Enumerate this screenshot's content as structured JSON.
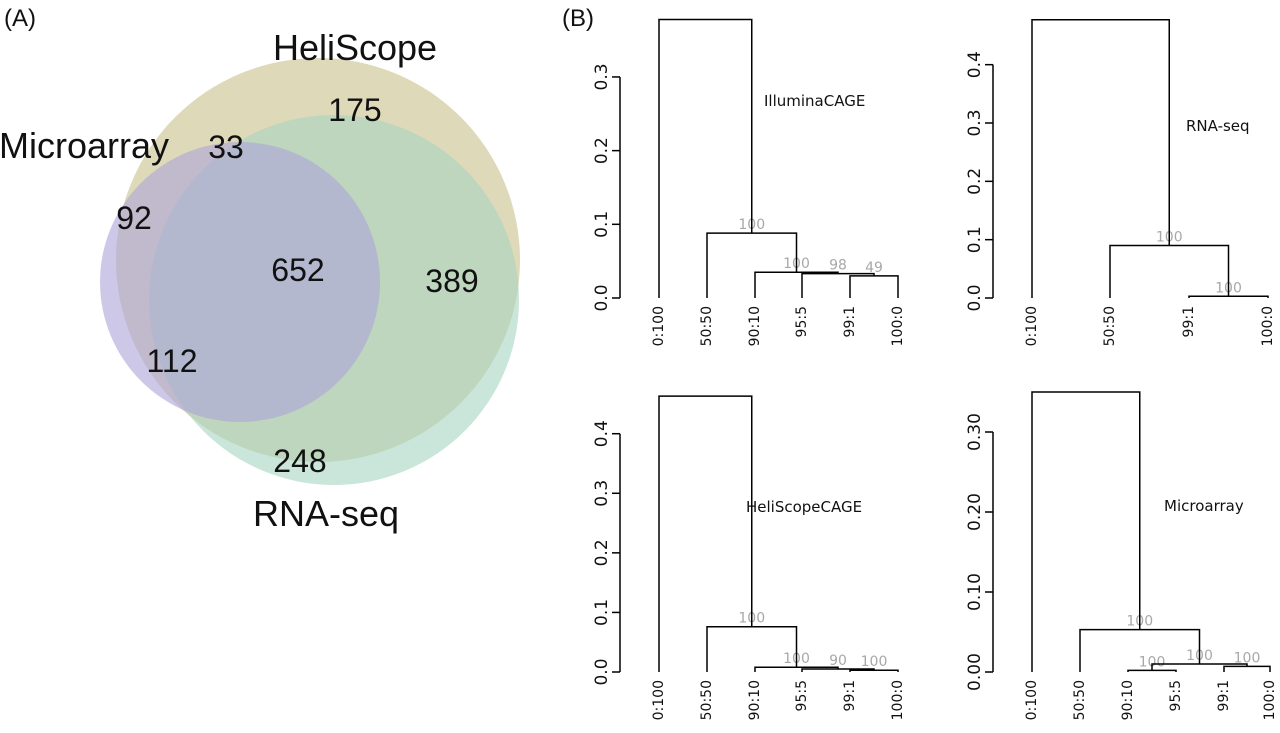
{
  "panels": {
    "a": "(A)",
    "b": "(B)"
  },
  "venn": {
    "sets": [
      {
        "name": "HeliScope",
        "color": "#c8c08a"
      },
      {
        "name": "Microarray",
        "color": "#aea4d8"
      },
      {
        "name": "RNA-seq",
        "color": "#a6d4c0"
      }
    ],
    "counts": {
      "heliscope_only": "175",
      "microarray_heliscope": "33",
      "microarray_only": "92",
      "all_three": "652",
      "heliscope_rnaseq": "389",
      "microarray_rnaseq": "112",
      "rnaseq_only": "248"
    }
  },
  "chart_data": [
    {
      "type": "dendrogram",
      "title": "IlluminaCAGE",
      "ylim": [
        0,
        0.38
      ],
      "yticks": [
        "0.0",
        "0.1",
        "0.2",
        "0.3"
      ],
      "leaves": [
        "0:100",
        "50:50",
        "90:10",
        "95:5",
        "99:1",
        "100:0"
      ],
      "merges": [
        {
          "left": 4,
          "right": 5,
          "height": 0.03,
          "bootstrap": "49"
        },
        {
          "left": 3,
          "right": -1,
          "height": 0.033,
          "bootstrap": "98"
        },
        {
          "left": 2,
          "right": -2,
          "height": 0.035,
          "bootstrap": "100"
        },
        {
          "left": 1,
          "right": -3,
          "height": 0.088,
          "bootstrap": "100"
        },
        {
          "left": 0,
          "right": -4,
          "height": 0.378,
          "bootstrap": ""
        }
      ]
    },
    {
      "type": "dendrogram",
      "title": "RNA-seq",
      "ylim": [
        0,
        0.48
      ],
      "yticks": [
        "0.0",
        "0.1",
        "0.2",
        "0.3",
        "0.4"
      ],
      "leaves": [
        "0:100",
        "50:50",
        "99:1",
        "100:0"
      ],
      "merges": [
        {
          "left": 2,
          "right": 3,
          "height": 0.003,
          "bootstrap": "100"
        },
        {
          "left": 1,
          "right": -1,
          "height": 0.09,
          "bootstrap": "100"
        },
        {
          "left": 0,
          "right": -2,
          "height": 0.477,
          "bootstrap": ""
        }
      ]
    },
    {
      "type": "dendrogram",
      "title": "HeliScopeCAGE",
      "ylim": [
        0,
        0.47
      ],
      "yticks": [
        "0.0",
        "0.1",
        "0.2",
        "0.3",
        "0.4"
      ],
      "leaves": [
        "0:100",
        "50:50",
        "90:10",
        "95:5",
        "99:1",
        "100:0"
      ],
      "merges": [
        {
          "left": 4,
          "right": 5,
          "height": 0.003,
          "bootstrap": "100"
        },
        {
          "left": 3,
          "right": -1,
          "height": 0.005,
          "bootstrap": "90"
        },
        {
          "left": 2,
          "right": -2,
          "height": 0.008,
          "bootstrap": "100"
        },
        {
          "left": 1,
          "right": -3,
          "height": 0.076,
          "bootstrap": "100"
        },
        {
          "left": 0,
          "right": -4,
          "height": 0.463,
          "bootstrap": ""
        }
      ]
    },
    {
      "type": "dendrogram",
      "title": "Microarray",
      "ylim": [
        0,
        0.35
      ],
      "yticks": [
        "0.00",
        "0.10",
        "0.20",
        "0.30"
      ],
      "leaves": [
        "0:100",
        "50:50",
        "90:10",
        "95:5",
        "99:1",
        "100:0"
      ],
      "merges": [
        {
          "left": 4,
          "right": 5,
          "height": 0.007,
          "bootstrap": "100"
        },
        {
          "left": 2,
          "right": 3,
          "height": 0.002,
          "bootstrap": "100"
        },
        {
          "left": -2,
          "right": -1,
          "height": 0.01,
          "bootstrap": "100"
        },
        {
          "left": 1,
          "right": -3,
          "height": 0.053,
          "bootstrap": "100"
        },
        {
          "left": 0,
          "right": -4,
          "height": 0.35,
          "bootstrap": ""
        }
      ]
    }
  ]
}
